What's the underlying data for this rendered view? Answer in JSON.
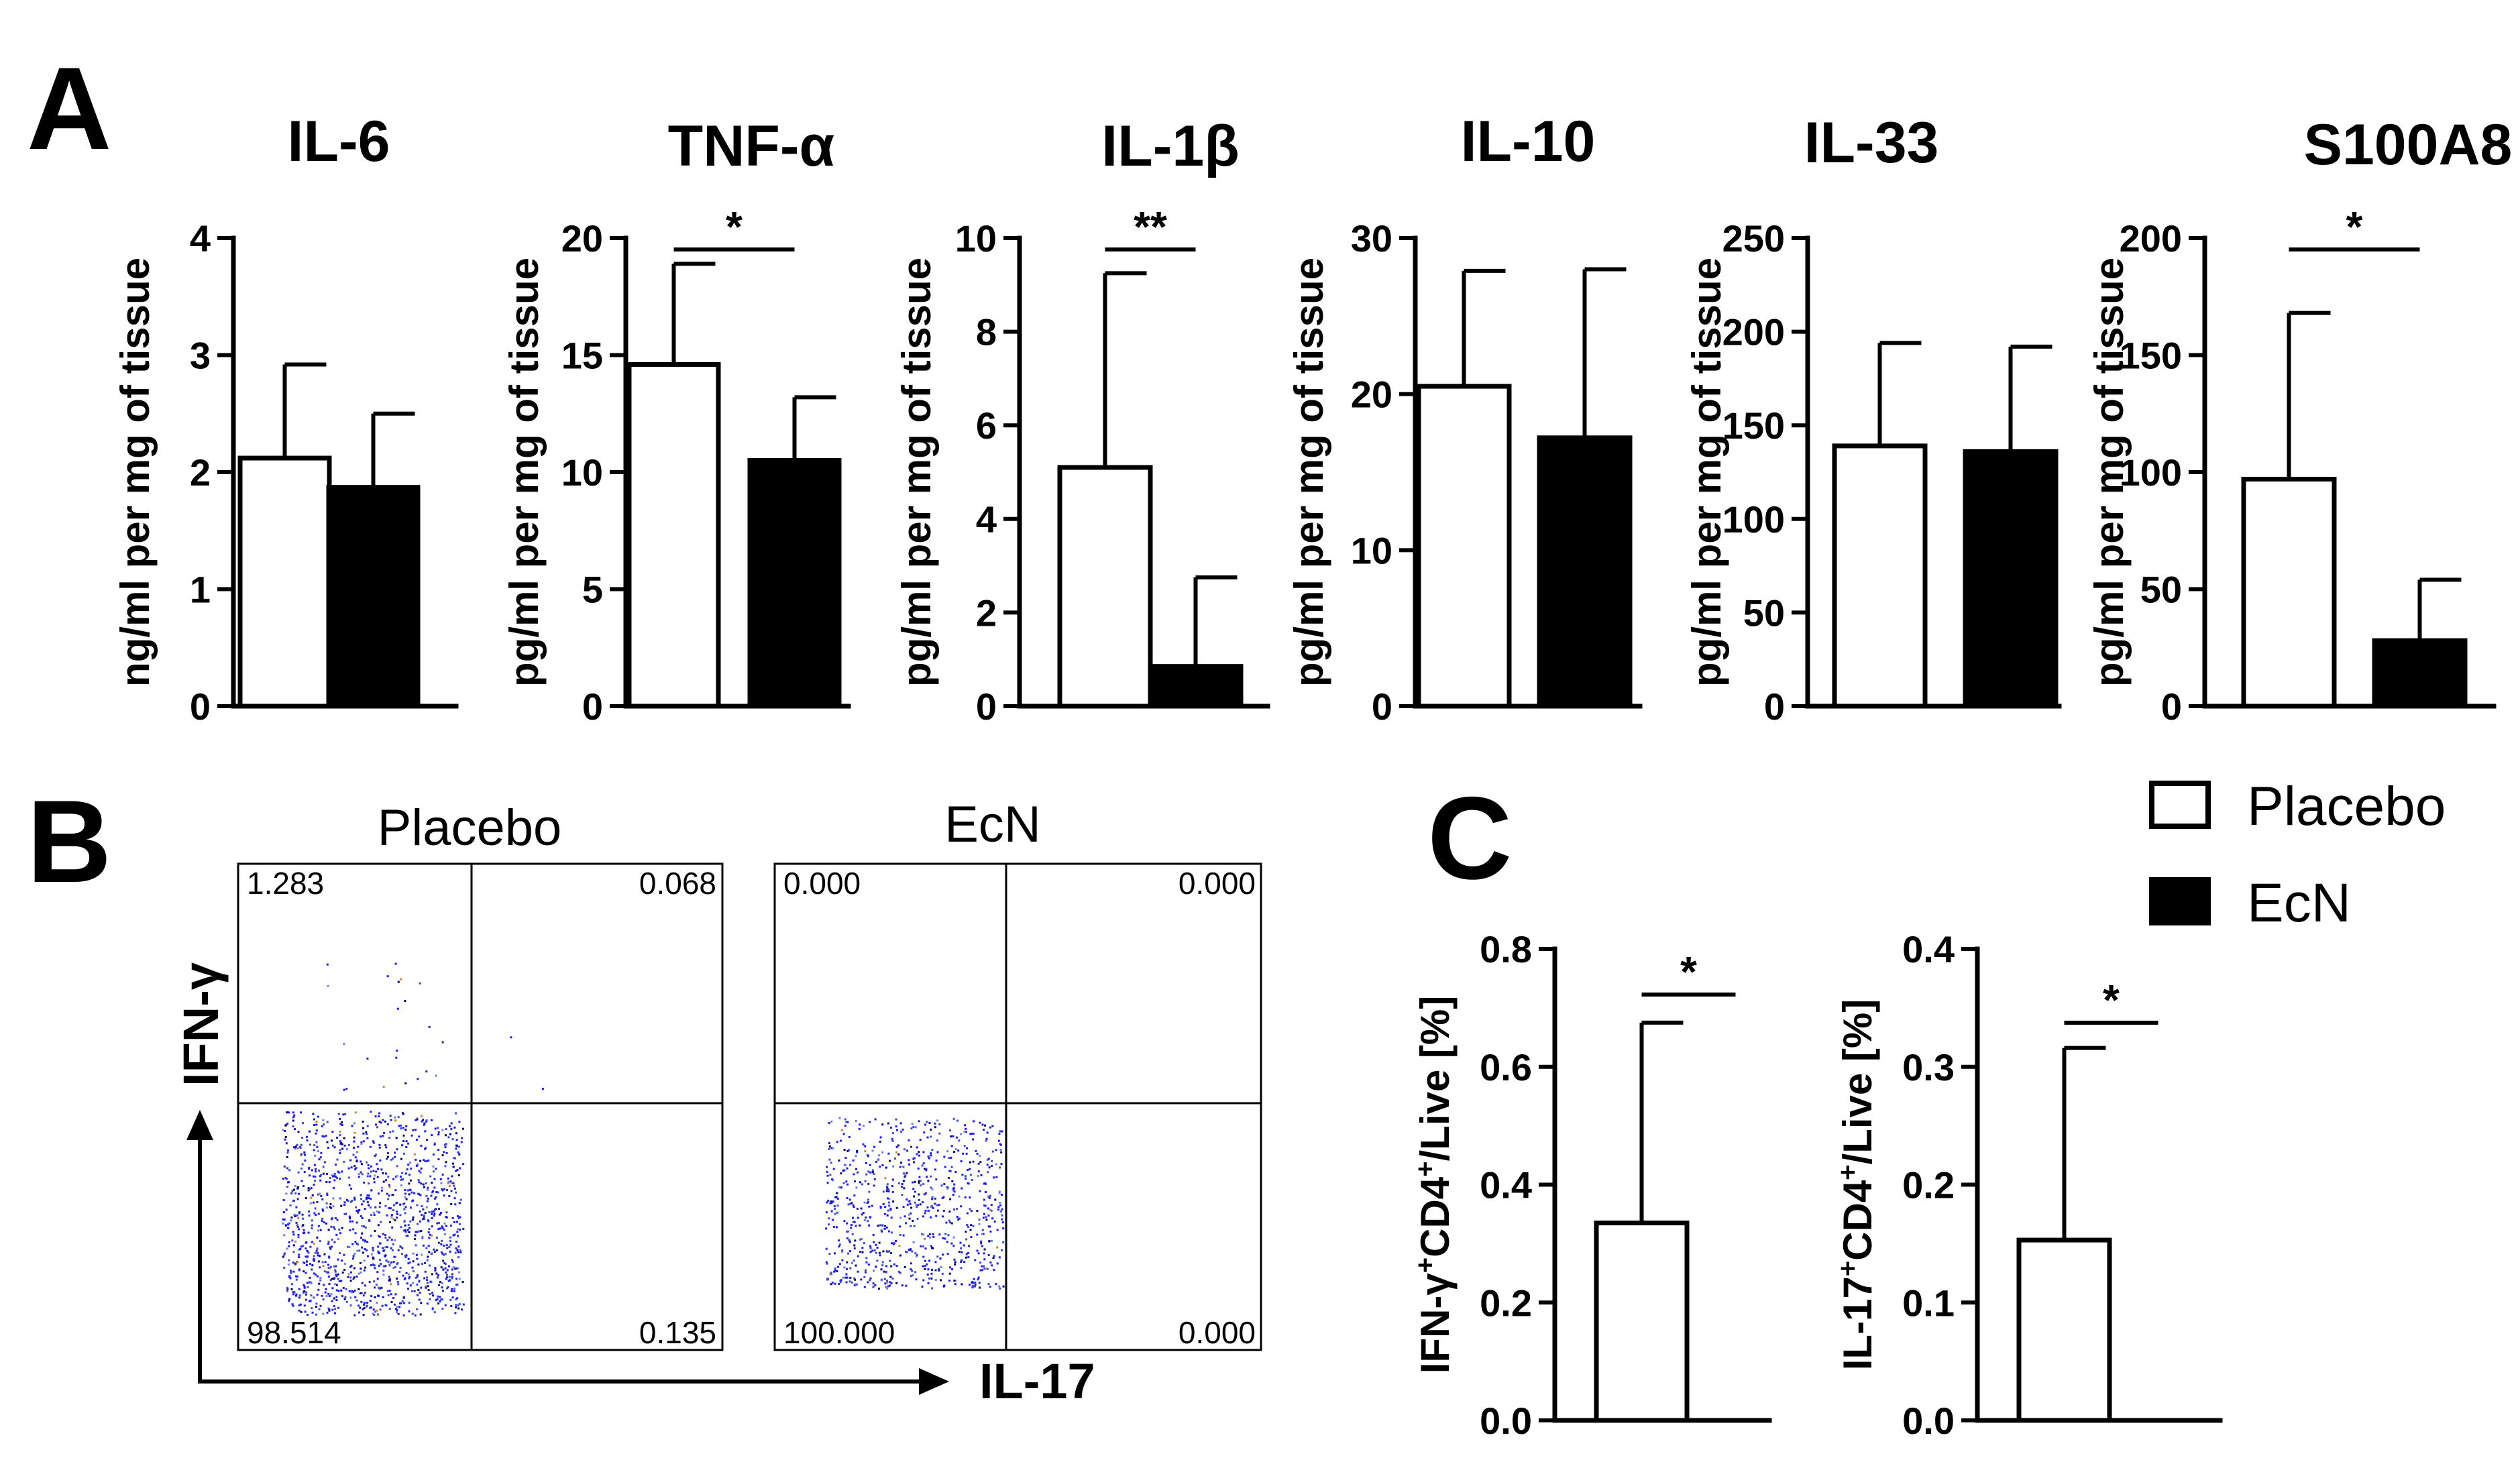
{
  "panel_labels": {
    "a": "A",
    "b": "B",
    "c": "C"
  },
  "legend": {
    "items": [
      {
        "label": "Placebo",
        "fill": "#ffffff"
      },
      {
        "label": "EcN",
        "fill": "#000000"
      }
    ]
  },
  "chart_data": [
    {
      "type": "bar",
      "panel": "A",
      "title": "IL-6",
      "ylabel": "ng/ml per mg of tissue",
      "categories": [
        "Placebo",
        "EcN"
      ],
      "values": [
        2.12,
        1.87
      ],
      "errors": [
        0.8,
        0.63
      ],
      "ylim": [
        0,
        4
      ],
      "yticks": [
        0,
        1,
        2,
        3,
        4
      ],
      "ytick_labels": [
        "0",
        "1",
        "2",
        "3",
        "4"
      ],
      "significance": ""
    },
    {
      "type": "bar",
      "panel": "A",
      "title": "TNF-α",
      "ylabel": "pg/ml per mg of tissue",
      "categories": [
        "Placebo",
        "EcN"
      ],
      "values": [
        14.6,
        10.5
      ],
      "errors": [
        4.3,
        2.7
      ],
      "ylim": [
        0,
        20
      ],
      "yticks": [
        0,
        5,
        10,
        15,
        20
      ],
      "ytick_labels": [
        "0",
        "5",
        "10",
        "15",
        "20"
      ],
      "significance": "*"
    },
    {
      "type": "bar",
      "panel": "A",
      "title": "IL-1β",
      "ylabel": "pg/ml per mg of tissue",
      "categories": [
        "Placebo",
        "EcN"
      ],
      "values": [
        5.1,
        0.85
      ],
      "errors": [
        4.15,
        1.9
      ],
      "ylim": [
        0,
        10
      ],
      "yticks": [
        0,
        2,
        4,
        6,
        8,
        10
      ],
      "ytick_labels": [
        "0",
        "2",
        "4",
        "6",
        "8",
        "10"
      ],
      "significance": "**"
    },
    {
      "type": "bar",
      "panel": "A",
      "title": "IL-10",
      "ylabel": "pg/ml per mg of tissue",
      "categories": [
        "Placebo",
        "EcN"
      ],
      "values": [
        20.5,
        17.2
      ],
      "errors": [
        7.4,
        10.8
      ],
      "ylim": [
        0,
        30
      ],
      "yticks": [
        0,
        10,
        20,
        30
      ],
      "ytick_labels": [
        "0",
        "10",
        "20",
        "30"
      ],
      "significance": ""
    },
    {
      "type": "bar",
      "panel": "A",
      "title": "IL-33",
      "ylabel": "pg/ml per mg of tissue",
      "categories": [
        "Placebo",
        "EcN"
      ],
      "values": [
        139,
        136
      ],
      "errors": [
        55,
        56
      ],
      "ylim": [
        0,
        250
      ],
      "yticks": [
        0,
        50,
        100,
        150,
        200,
        250
      ],
      "ytick_labels": [
        "0",
        "50",
        "100",
        "150",
        "200",
        "250"
      ],
      "significance": ""
    },
    {
      "type": "bar",
      "panel": "A",
      "title": "S100A8",
      "ylabel": "pg/ml per mg of tissue",
      "categories": [
        "Placebo",
        "EcN"
      ],
      "values": [
        97,
        28
      ],
      "errors": [
        71,
        26
      ],
      "ylim": [
        0,
        200
      ],
      "yticks": [
        0,
        50,
        100,
        150,
        200
      ],
      "ytick_labels": [
        "0",
        "50",
        "100",
        "150",
        "200"
      ],
      "significance": "*"
    },
    {
      "type": "bar",
      "panel": "C",
      "title": "",
      "ylabel_parts": [
        "IFN-γ",
        "+",
        "CD4",
        "+",
        "/Live [%]"
      ],
      "categories": [
        "Placebo",
        "EcN"
      ],
      "values": [
        0.335,
        0
      ],
      "errors": [
        0.34,
        0
      ],
      "ylim": [
        0,
        0.8
      ],
      "yticks": [
        0,
        0.2,
        0.4,
        0.6,
        0.8
      ],
      "ytick_labels": [
        "0.0",
        "0.2",
        "0.4",
        "0.6",
        "0.8"
      ],
      "significance": "*"
    },
    {
      "type": "bar",
      "panel": "C",
      "title": "",
      "ylabel_parts": [
        "IL-17",
        "+",
        "CD4",
        "+",
        "/Live [%]"
      ],
      "categories": [
        "Placebo",
        "EcN"
      ],
      "values": [
        0.153,
        0
      ],
      "errors": [
        0.163,
        0
      ],
      "ylim": [
        0,
        0.4
      ],
      "yticks": [
        0,
        0.1,
        0.2,
        0.3,
        0.4
      ],
      "ytick_labels": [
        "0.0",
        "0.1",
        "0.2",
        "0.3",
        "0.4"
      ],
      "significance": "*"
    }
  ],
  "flow": {
    "x_label": "IL-17",
    "y_label": "IFN-γ",
    "plots": [
      {
        "title": "Placebo",
        "q_ul": "1.283",
        "q_ur": "0.068",
        "q_ll": "98.514",
        "q_lr": "0.135"
      },
      {
        "title": "EcN",
        "q_ul": "0.000",
        "q_ur": "0.000",
        "q_ll": "100.000",
        "q_lr": "0.000"
      }
    ],
    "dot_colors": [
      "#1a1aff",
      "#3a4dd6",
      "#000080",
      "#6a7fe8",
      "#e07a2a"
    ]
  }
}
